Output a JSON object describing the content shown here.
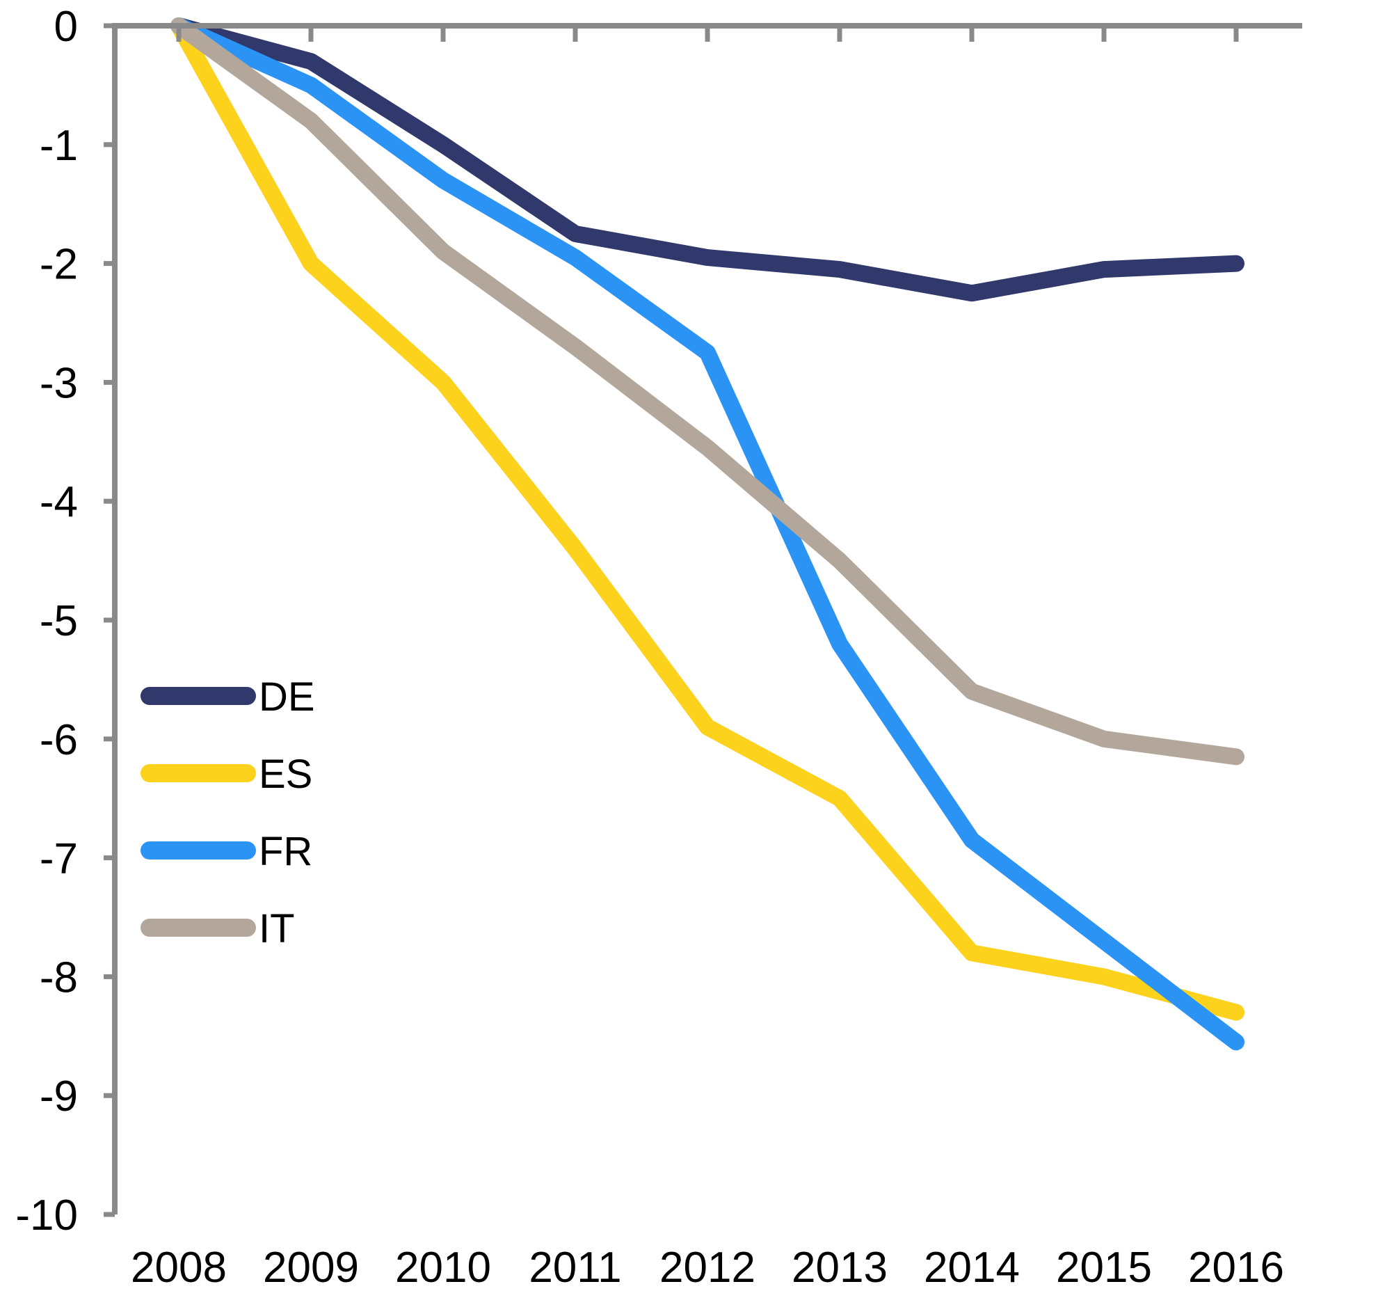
{
  "chart_data": {
    "type": "line",
    "title": "",
    "xlabel": "",
    "ylabel": "",
    "categories": [
      "2008",
      "2009",
      "2010",
      "2011",
      "2012",
      "2013",
      "2014",
      "2015",
      "2016"
    ],
    "series": [
      {
        "name": "DE",
        "color": "#30386C",
        "values": [
          0,
          -0.3,
          -1.0,
          -1.75,
          -1.95,
          -2.05,
          -2.25,
          -2.05,
          -2.0
        ]
      },
      {
        "name": "ES",
        "color": "#FCD21D",
        "values": [
          0,
          -2.0,
          -3.0,
          -4.4,
          -5.9,
          -6.5,
          -7.8,
          -8.0,
          -8.3
        ]
      },
      {
        "name": "FR",
        "color": "#2A93F4",
        "values": [
          0,
          -0.5,
          -1.3,
          -1.95,
          -2.75,
          -5.2,
          -6.85,
          -7.7,
          -8.55
        ]
      },
      {
        "name": "IT",
        "color": "#B3A79C",
        "values": [
          0,
          -0.8,
          -1.9,
          -2.7,
          -3.55,
          -4.5,
          -5.6,
          -6.0,
          -6.15
        ]
      }
    ],
    "draw_order": [
      "DE",
      "ES",
      "FR",
      "IT"
    ],
    "ylim": [
      0,
      -10
    ],
    "ytick_labels": [
      "0",
      "-1",
      "-2",
      "-3",
      "-4",
      "-5",
      "-6",
      "-7",
      "-8",
      "-9",
      "-10"
    ],
    "grid": false,
    "axis_color": "#898989",
    "legend": {
      "position": "inside-lower-left",
      "entries": [
        "DE",
        "ES",
        "FR",
        "IT"
      ]
    }
  }
}
